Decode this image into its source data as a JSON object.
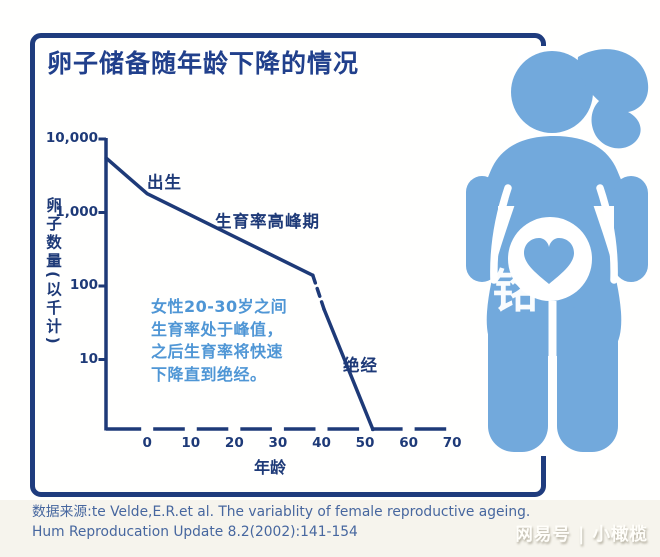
{
  "header": {
    "title": "卵子储备随年龄下降的情况"
  },
  "chart_data": {
    "type": "line",
    "title": "卵子储备随年龄下降的情况",
    "xlabel": "年龄",
    "ylabel": "卵子数量(以千计)",
    "y_scale": "log",
    "grid": false,
    "xlim": [
      -9.5,
      71
    ],
    "ylim": [
      1,
      10000
    ],
    "x_ticks": [
      0,
      10,
      20,
      30,
      40,
      50,
      60,
      70
    ],
    "y_ticks": [
      10000,
      1000,
      100,
      10
    ],
    "y_tick_labels": [
      "10,000",
      "1,000",
      "100",
      "10"
    ],
    "series": [
      {
        "name": "egg-reserve-prenatal-to-peak",
        "style": "solid",
        "points": [
          [
            -9.4,
            5500
          ],
          [
            0,
            1800
          ],
          [
            38,
            140
          ]
        ]
      },
      {
        "name": "egg-reserve-rapid-decline-dashed",
        "style": "dashed",
        "points": [
          [
            38,
            140
          ],
          [
            40.6,
            48
          ]
        ]
      },
      {
        "name": "egg-reserve-to-menopause",
        "style": "solid",
        "points": [
          [
            40.6,
            48
          ],
          [
            51.8,
            1.1
          ]
        ]
      }
    ],
    "annotations": [
      {
        "id": "birth",
        "text": "出生"
      },
      {
        "id": "peak-fertility",
        "text": "生育率高峰期"
      },
      {
        "id": "menopause",
        "text": "绝经"
      },
      {
        "id": "note",
        "lines": [
          "女性20-30岁之间",
          "生育率处于峰值，",
          "之后生育率将快速",
          "下降直到绝经。"
        ]
      }
    ]
  },
  "source": {
    "line1": "数据来源:te Velde,E.R.et al. The variablity of female reproductive ageing.",
    "line2": "Hum Reproducation Update 8.2(2002):141-154"
  },
  "watermarks": {
    "bottom_right": "网易号 | 小橄榄",
    "figure_overlay": "铭"
  },
  "colors": {
    "navy": "#1e3a78",
    "title_navy": "#21408c",
    "note_blue": "#4f96d5",
    "figure_blue": "#72a9dc",
    "source_text": "#47679f",
    "band_bg": "#f6f4ed"
  }
}
